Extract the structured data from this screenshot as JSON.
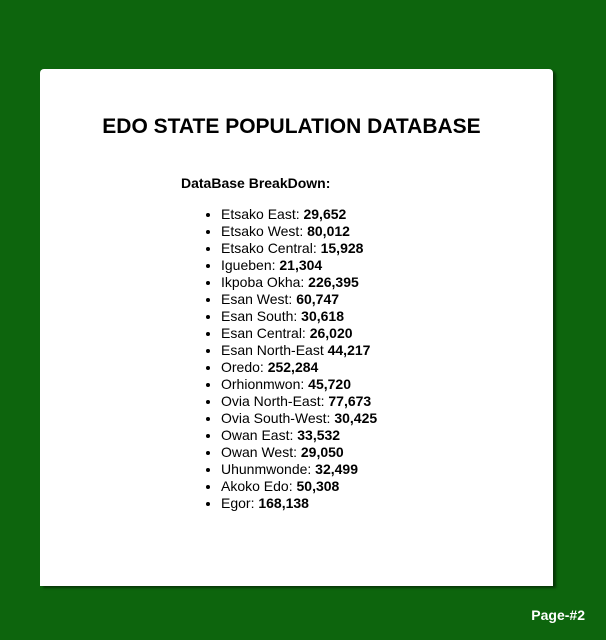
{
  "title": "EDO STATE POPULATION DATABASE",
  "breakdown_label": "DataBase BreakDown:",
  "items": [
    {
      "name": "Etsako East:",
      "value": "29,652"
    },
    {
      "name": "Etsako West:",
      "value": "80,012"
    },
    {
      "name": "Etsako Central:",
      "value": "15,928"
    },
    {
      "name": "Igueben:",
      "value": "21,304"
    },
    {
      "name": "Ikpoba Okha:",
      "value": "226,395"
    },
    {
      "name": "Esan West:",
      "value": "60,747"
    },
    {
      "name": "Esan South:",
      "value": "30,618"
    },
    {
      "name": "Esan Central:",
      "value": "26,020"
    },
    {
      "name": "Esan North-East",
      "value": "44,217"
    },
    {
      "name": "Oredo:",
      "value": "252,284"
    },
    {
      "name": "Orhionmwon:",
      "value": "45,720"
    },
    {
      "name": "Ovia North-East:",
      "value": "77,673"
    },
    {
      "name": "Ovia South-West:",
      "value": "30,425"
    },
    {
      "name": "Owan East:",
      "value": "33,532"
    },
    {
      "name": "Owan West:",
      "value": "29,050"
    },
    {
      "name": "Uhunmwonde:",
      "value": "32,499"
    },
    {
      "name": "Akoko Edo:",
      "value": "50,308"
    },
    {
      "name": "Egor:",
      "value": "168,138"
    }
  ],
  "page_label": "Page-#2",
  "colors": {
    "background": "#0d650d",
    "card": "#ffffff",
    "text": "#000000"
  }
}
